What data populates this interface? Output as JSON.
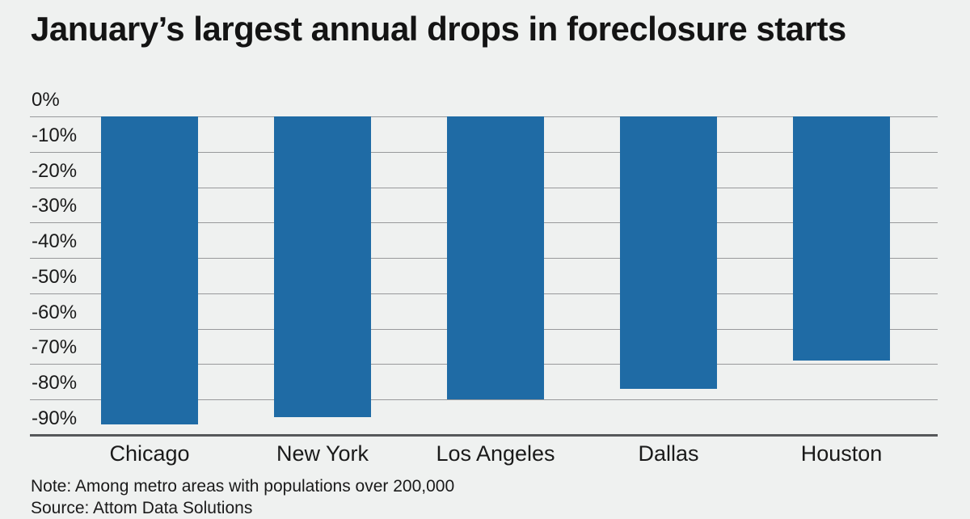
{
  "page": {
    "title": "January’s largest annual drops in foreclosure starts",
    "note": "Note: Among metro areas with populations over 200,000",
    "source": "Source: Attom Data Solutions"
  },
  "chart_data": {
    "type": "bar",
    "title": "January’s largest annual drops in foreclosure starts",
    "categories": [
      "Chicago",
      "New York",
      "Los Angeles",
      "Dallas",
      "Houston"
    ],
    "values": [
      -87,
      -85,
      -80,
      -77,
      -69
    ],
    "unit": "%",
    "xlabel": "",
    "ylabel": "",
    "ylim": [
      -90,
      0
    ],
    "y_tick_step": 10,
    "y_tick_labels": [
      "0%",
      "-10%",
      "-20%",
      "-30%",
      "-40%",
      "-50%",
      "-60%",
      "-70%",
      "-80%",
      "-90%"
    ],
    "grid": true,
    "legend": false,
    "orientation": "vertical-negative",
    "bar_color": "#1f6ba5",
    "background_color": "#eff1f0",
    "gridline_color": "#98999b",
    "axis_line_color": "#56585a",
    "text_color": "#1a1a1a",
    "note": "Note: Among metro areas with populations over 200,000",
    "source": "Source: Attom Data Solutions"
  }
}
